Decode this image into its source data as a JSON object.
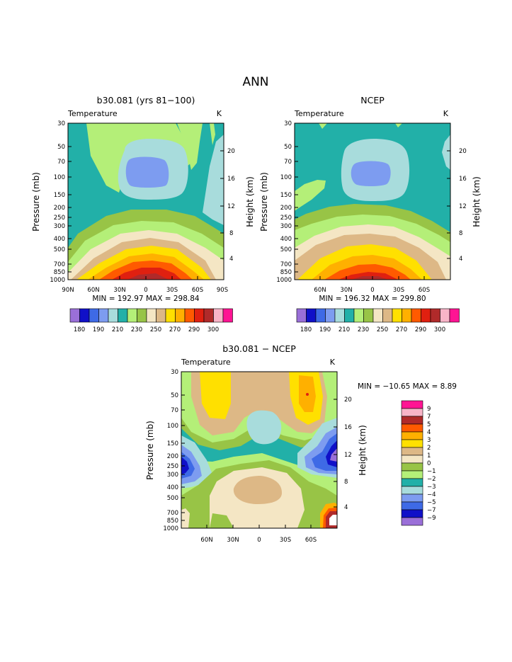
{
  "page": {
    "title": "ANN"
  },
  "chart_data": [
    {
      "type": "contour",
      "title": "b30.081 (yrs 81−100)",
      "left_label": "Temperature",
      "right_label": "K",
      "ylabel": "Pressure (mb)",
      "y2label": "Height (km)",
      "pressure_ticks": [
        "30",
        "50",
        "70",
        "100",
        "150",
        "200",
        "250",
        "300",
        "400",
        "500",
        "700",
        "850",
        "1000"
      ],
      "height_ticks": [
        "20",
        "16",
        "12",
        "8",
        "4"
      ],
      "x_ticks": [
        "90N",
        "60N",
        "30N",
        "0",
        "30S",
        "60S",
        "90S"
      ],
      "min_max": "MIN = 192.97   MAX = 298.84",
      "colorbar_labels": [
        "180",
        "190",
        "210",
        "230",
        "250",
        "270",
        "290",
        "300"
      ],
      "colors": [
        "#9a6fd8",
        "#1010c8",
        "#3e6ae6",
        "#7d9cf0",
        "#a8dcdc",
        "#22b0a8",
        "#b4ef78",
        "#98c446",
        "#f4e6c4",
        "#ddb886",
        "#ffe000",
        "#ffb000",
        "#ff5a00",
        "#e02010",
        "#b02a2a",
        "#f8b4c8",
        "#ff1493"
      ]
    },
    {
      "type": "contour",
      "title": "NCEP",
      "left_label": "Temperature",
      "right_label": "K",
      "ylabel": "Pressure (mb)",
      "y2label": "Height (km)",
      "pressure_ticks": [
        "30",
        "50",
        "70",
        "100",
        "150",
        "200",
        "250",
        "300",
        "400",
        "500",
        "700",
        "850",
        "1000"
      ],
      "height_ticks": [
        "20",
        "16",
        "12",
        "8",
        "4"
      ],
      "x_ticks": [
        "60N",
        "30N",
        "0",
        "30S",
        "60S"
      ],
      "min_max": "MIN = 196.32   MAX = 299.80",
      "colorbar_labels": [
        "180",
        "190",
        "210",
        "230",
        "250",
        "270",
        "290",
        "300"
      ]
    },
    {
      "type": "contour",
      "title": "b30.081 − NCEP",
      "left_label": "Temperature",
      "right_label": "K",
      "ylabel": "Pressure (mb)",
      "y2label": "Height (km)",
      "pressure_ticks": [
        "30",
        "50",
        "70",
        "100",
        "150",
        "200",
        "250",
        "300",
        "400",
        "500",
        "700",
        "850",
        "1000"
      ],
      "height_ticks": [
        "20",
        "16",
        "12",
        "8",
        "4"
      ],
      "x_ticks": [
        "60N",
        "30N",
        "0",
        "30S",
        "60S"
      ],
      "min_max": "MIN = −10.65   MAX =    8.89",
      "legend_labels": [
        "9",
        "7",
        "5",
        "4",
        "3",
        "2",
        "1",
        "0",
        "−1",
        "−2",
        "−3",
        "−4",
        "−5",
        "−7",
        "−9"
      ],
      "legend_colors": [
        "#ff1493",
        "#f8b4c8",
        "#b02a2a",
        "#ff5a00",
        "#ffb000",
        "#ffe000",
        "#ddb886",
        "#f4e6c4",
        "#98c446",
        "#b4ef78",
        "#22b0a8",
        "#a8dcdc",
        "#7d9cf0",
        "#3e6ae6",
        "#1010c8",
        "#9a6fd8"
      ]
    }
  ]
}
